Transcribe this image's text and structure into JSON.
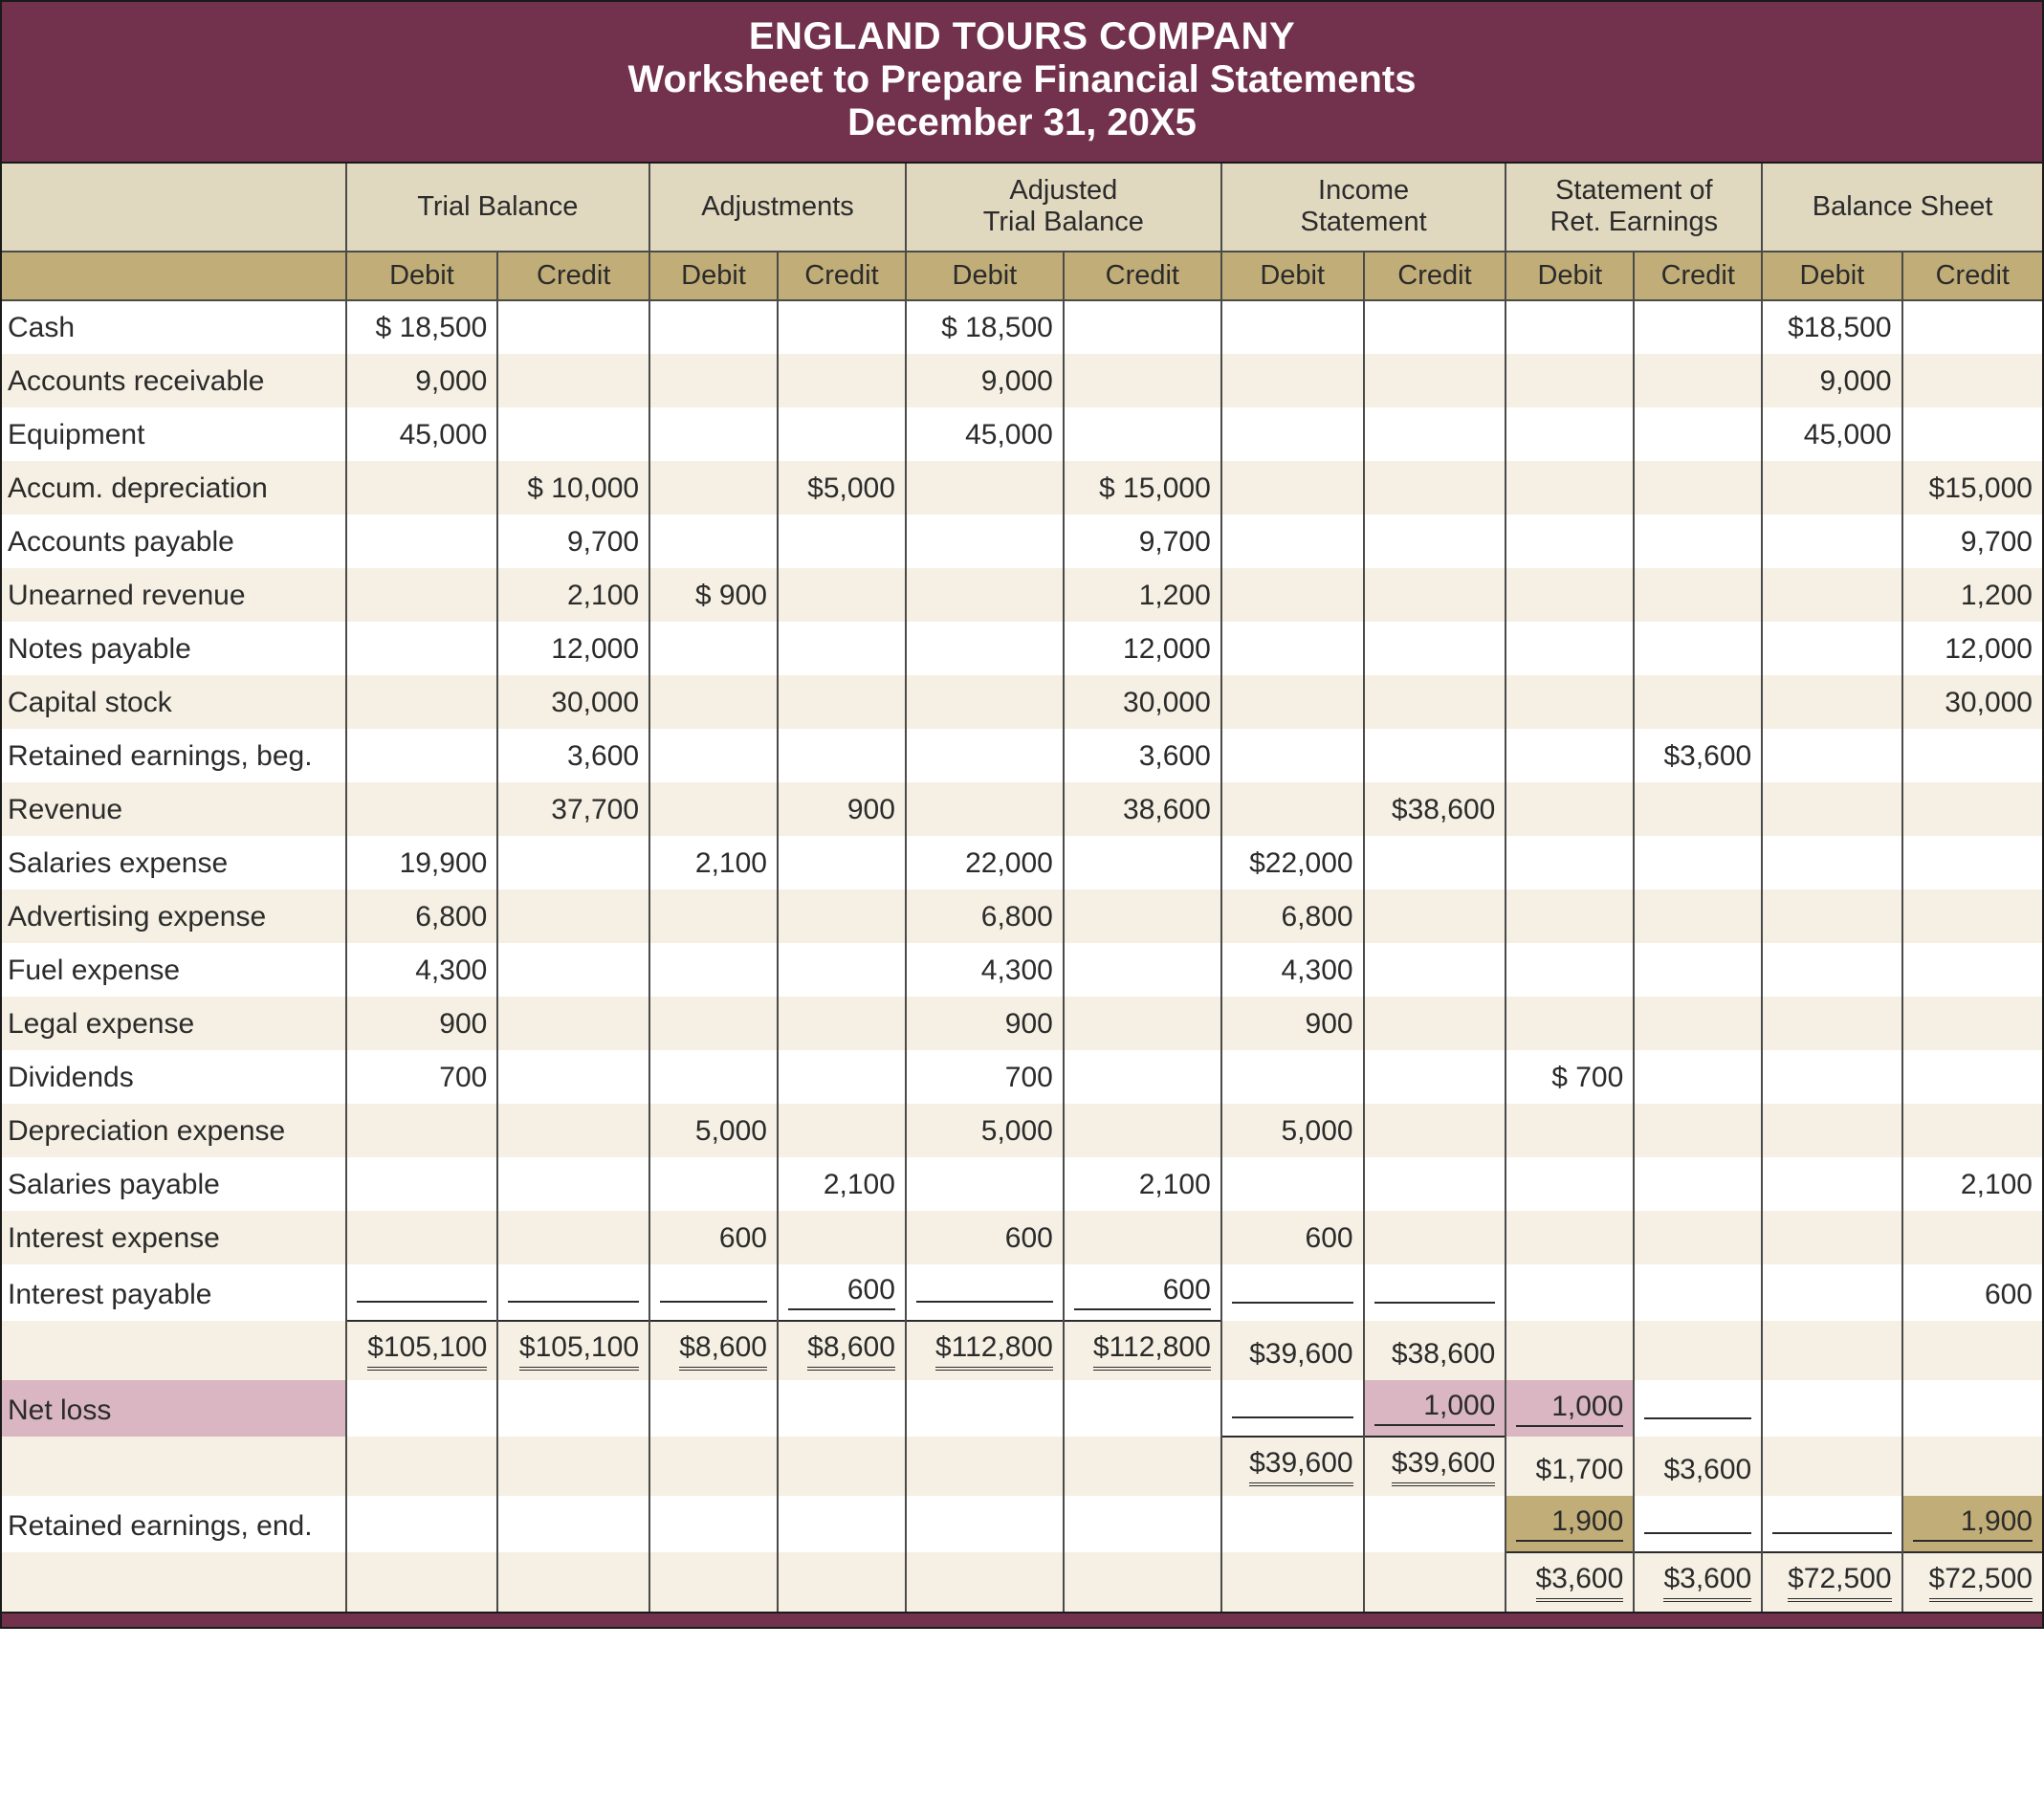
{
  "colors": {
    "header_bg": "#72314c",
    "header_text": "#ffffff",
    "group_row_bg": "#e1d8c0",
    "dc_row_bg": "#c1ad77",
    "stripe_odd": "#f5f0e3",
    "stripe_even": "#ffffff",
    "highlight_pink": "#d9b6c2",
    "highlight_olive": "#c1ad77",
    "rule": "#4a4a4a",
    "text": "#2b2b2b"
  },
  "title": {
    "line1": "ENGLAND TOURS COMPANY",
    "line2": "Worksheet to Prepare Financial Statements",
    "line3": "December 31, 20X5"
  },
  "sections": [
    {
      "id": "tb",
      "label": "Trial Balance",
      "debit": "Debit",
      "credit": "Credit"
    },
    {
      "id": "adj",
      "label": "Adjustments",
      "debit": "Debit",
      "credit": "Credit"
    },
    {
      "id": "atb",
      "label": "Adjusted\nTrial Balance",
      "debit": "Debit",
      "credit": "Credit"
    },
    {
      "id": "is",
      "label": "Income\nStatement",
      "debit": "Debit",
      "credit": "Credit"
    },
    {
      "id": "re",
      "label": "Statement of\nRet. Earnings",
      "debit": "Debit",
      "credit": "Credit"
    },
    {
      "id": "bs",
      "label": "Balance Sheet",
      "debit": "Debit",
      "credit": "Credit"
    }
  ],
  "rows": [
    {
      "acct": "Cash",
      "tb_d": "$  18,500",
      "atb_d": "$  18,500",
      "bs_d": "$18,500"
    },
    {
      "acct": "Accounts receivable",
      "tb_d": "9,000",
      "atb_d": "9,000",
      "bs_d": "9,000"
    },
    {
      "acct": "Equipment",
      "tb_d": "45,000",
      "atb_d": "45,000",
      "bs_d": "45,000"
    },
    {
      "acct": "Accum. depreciation",
      "tb_c": "$  10,000",
      "adj_c": "$5,000",
      "atb_c": "$  15,000",
      "bs_c": "$15,000"
    },
    {
      "acct": "Accounts payable",
      "tb_c": "9,700",
      "atb_c": "9,700",
      "bs_c": "9,700"
    },
    {
      "acct": "Unearned revenue",
      "tb_c": "2,100",
      "adj_d": "$   900",
      "atb_c": "1,200",
      "bs_c": "1,200"
    },
    {
      "acct": "Notes payable",
      "tb_c": "12,000",
      "atb_c": "12,000",
      "bs_c": "12,000"
    },
    {
      "acct": "Capital stock",
      "tb_c": "30,000",
      "atb_c": "30,000",
      "bs_c": "30,000"
    },
    {
      "acct": "Retained earnings, beg.",
      "tb_c": "3,600",
      "atb_c": "3,600",
      "re_c": "$3,600"
    },
    {
      "acct": "Revenue",
      "tb_c": "37,700",
      "adj_c": "900",
      "atb_c": "38,600",
      "is_c": "$38,600"
    },
    {
      "acct": "Salaries expense",
      "tb_d": "19,900",
      "adj_d": "2,100",
      "atb_d": "22,000",
      "is_d": "$22,000"
    },
    {
      "acct": "Advertising expense",
      "tb_d": "6,800",
      "atb_d": "6,800",
      "is_d": "6,800"
    },
    {
      "acct": "Fuel expense",
      "tb_d": "4,300",
      "atb_d": "4,300",
      "is_d": "4,300"
    },
    {
      "acct": "Legal expense",
      "tb_d": "900",
      "atb_d": "900",
      "is_d": "900"
    },
    {
      "acct": "Dividends",
      "tb_d": "700",
      "atb_d": "700",
      "re_d": "$   700"
    },
    {
      "acct": "Depreciation expense",
      "adj_d": "5,000",
      "atb_d": "5,000",
      "is_d": "5,000"
    },
    {
      "acct": "Salaries payable",
      "adj_c": "2,100",
      "atb_c": "2,100",
      "bs_c": "2,100"
    },
    {
      "acct": "Interest expense",
      "adj_d": "600",
      "atb_d": "600",
      "is_d": "600"
    },
    {
      "acct": "Interest payable",
      "adj_c": "600",
      "atb_c": "600",
      "bs_c": "600"
    }
  ],
  "totals1": {
    "tb_d": "$105,100",
    "tb_c": "$105,100",
    "adj_d": "$8,600",
    "adj_c": "$8,600",
    "atb_d": "$112,800",
    "atb_c": "$112,800",
    "is_d": "$39,600",
    "is_c": "$38,600"
  },
  "netloss": {
    "label": "Net loss",
    "is_c": "1,000",
    "re_d": "1,000"
  },
  "totals2": {
    "is_d": "$39,600",
    "is_c": "$39,600",
    "re_d": "$1,700",
    "re_c": "$3,600"
  },
  "re_end": {
    "label": "Retained earnings, end.",
    "re_d": "1,900",
    "bs_c": "1,900"
  },
  "totals3": {
    "re_d": "$3,600",
    "re_c": "$3,600",
    "bs_d": "$72,500",
    "bs_c": "$72,500"
  }
}
